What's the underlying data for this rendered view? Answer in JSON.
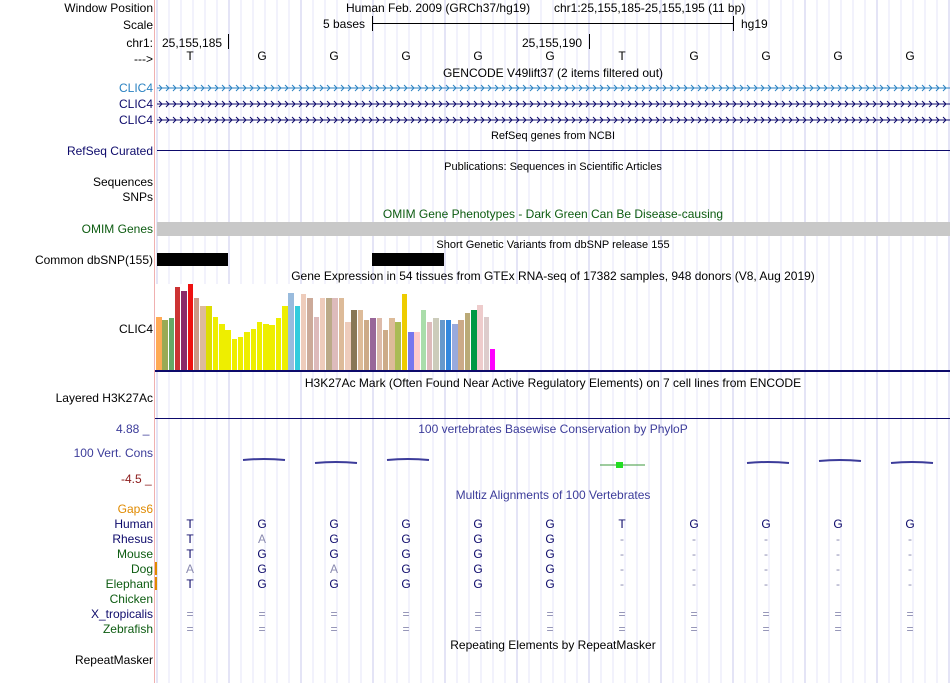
{
  "header": {
    "window_position_label": "Window Position",
    "assembly_text": "Human Feb. 2009 (GRCh37/hg19)",
    "position_text": "chr1:25,155,185-25,155,195 (11 bp)",
    "scale_label": "Scale",
    "scale_text": "5 bases",
    "scale_db": "hg19",
    "chrom_label": "chr1:",
    "coord_left": "25,155,185",
    "coord_right": "25,155,190",
    "strand_label": "--->"
  },
  "bases": [
    "T",
    "G",
    "G",
    "G",
    "G",
    "G",
    "T",
    "G",
    "G",
    "G",
    "G"
  ],
  "gencode": {
    "title": "GENCODE V49lift37 (2 items filtered out)",
    "items": [
      "CLIC4",
      "CLIC4",
      "CLIC4"
    ],
    "color_first": "#2a82c2",
    "color_rest": "#0d0a6b"
  },
  "refseq": {
    "title": "RefSeq genes from NCBI",
    "label": "RefSeq Curated",
    "color": "#0d0a6b"
  },
  "publications": {
    "title": "Publications: Sequences in Scientific Articles",
    "labels": [
      "Sequences",
      "SNPs"
    ]
  },
  "omim": {
    "title": "OMIM Gene Phenotypes - Dark Green Can Be Disease-causing",
    "label": "OMIM Genes",
    "color": "#0d5c11"
  },
  "dbsnp": {
    "title": "Short Genetic Variants from dbSNP release 155",
    "label": "Common dbSNP(155)"
  },
  "gtex": {
    "title": "Gene Expression in 54 tissues from GTEx RNA-seq of 17382 samples, 948 donors (V8, Aug 2019)",
    "label": "CLIC4",
    "values": [
      0.62,
      0.58,
      0.6,
      0.97,
      0.92,
      1.0,
      0.84,
      0.74,
      0.74,
      0.62,
      0.54,
      0.46,
      0.36,
      0.38,
      0.44,
      0.48,
      0.56,
      0.54,
      0.52,
      0.6,
      0.74,
      0.9,
      0.74,
      0.88,
      0.84,
      0.62,
      0.84,
      0.84,
      0.84,
      0.84,
      0.56,
      0.7,
      0.7,
      0.58,
      0.6,
      0.6,
      0.46,
      0.6,
      0.56,
      0.88,
      0.44,
      0.44,
      0.7,
      0.56,
      0.6,
      0.58,
      0.58,
      0.54,
      0.58,
      0.66,
      0.7,
      0.76,
      0.62,
      0.24
    ],
    "colors": [
      "#ffaa55",
      "#99aa55",
      "#66aa66",
      "#cc3333",
      "#8b2a69",
      "#ee1111",
      "#cc9988",
      "#ddbb99",
      "#dddd00",
      "#eeee00",
      "#eeee00",
      "#eeee00",
      "#eeee00",
      "#eeee00",
      "#eeee00",
      "#eeee00",
      "#eeee00",
      "#eeee00",
      "#eeee00",
      "#eeee00",
      "#eeee00",
      "#99bbdd",
      "#33ccdd",
      "#eeccbb",
      "#ccaa99",
      "#ddbbbb",
      "#eeccbb",
      "#bbaa88",
      "#ddbbbb",
      "#ddbb99",
      "#eeccbb",
      "#887755",
      "#ddbb99",
      "#ccaa88",
      "#996699",
      "#ddbbaa",
      "#ccaa88",
      "#ddbb99",
      "#aabb55",
      "#eecc00",
      "#7777ee",
      "#ffcccc",
      "#aaddaa",
      "#ddbbbb",
      "#ccccbb",
      "#6699cc",
      "#3388dd",
      "#99aadd",
      "#ccaa88",
      "#bbaa77",
      "#009944",
      "#eecccc",
      "#ddcccc",
      "#ff00ff"
    ]
  },
  "h3k27ac": {
    "title": "H3K27Ac Mark (Often Found Near Active Regulatory Elements) on 7 cell lines from ENCODE",
    "label": "Layered H3K27Ac"
  },
  "cons": {
    "title": "100 vertebrates Basewise Conservation by PhyloP",
    "label": "100 Vert. Cons",
    "max": "4.88 _",
    "min": "-4.5 _",
    "color": "#3c3c9a",
    "neg_color": "#8b1a1a"
  },
  "multiz": {
    "title": "Multiz Alignments of 100 Vertebrates",
    "gaps_label": "Gaps6",
    "gaps_color": "#e08a00",
    "species": [
      {
        "name": "Human",
        "color": "#0d0a6b",
        "seq": [
          "T",
          "G",
          "G",
          "G",
          "G",
          "G",
          "T",
          "G",
          "G",
          "G",
          "G"
        ]
      },
      {
        "name": "Rhesus",
        "color": "#0d0a6b",
        "seq": [
          "T",
          "A",
          "G",
          "G",
          "G",
          "G",
          "-",
          "-",
          "-",
          "-",
          "-"
        ]
      },
      {
        "name": "Mouse",
        "color": "#0d5c11",
        "seq": [
          "T",
          "G",
          "G",
          "G",
          "G",
          "G",
          "-",
          "-",
          "-",
          "-",
          "-"
        ]
      },
      {
        "name": "Dog",
        "color": "#0d5c11",
        "seq": [
          "A",
          "G",
          "A",
          "G",
          "G",
          "G",
          "-",
          "-",
          "-",
          "-",
          "-"
        ]
      },
      {
        "name": "Elephant",
        "color": "#0d5c11",
        "seq": [
          "T",
          "G",
          "G",
          "G",
          "G",
          "G",
          "-",
          "-",
          "-",
          "-",
          "-"
        ]
      },
      {
        "name": "Chicken",
        "color": "#0d5c11",
        "seq": [
          "",
          "",
          "",
          "",
          "",
          "",
          "",
          "",
          "",
          "",
          ""
        ]
      },
      {
        "name": "X_tropicalis",
        "color": "#0d0a6b",
        "seq": [
          "=",
          "=",
          "=",
          "=",
          "=",
          "=",
          "=",
          "=",
          "=",
          "=",
          "="
        ]
      },
      {
        "name": "Zebrafish",
        "color": "#0d5c11",
        "seq": [
          "=",
          "=",
          "=",
          "=",
          "=",
          "=",
          "=",
          "=",
          "=",
          "=",
          "="
        ]
      }
    ]
  },
  "repeatmasker": {
    "title": "Repeating Elements by RepeatMasker",
    "label": "RepeatMasker"
  }
}
